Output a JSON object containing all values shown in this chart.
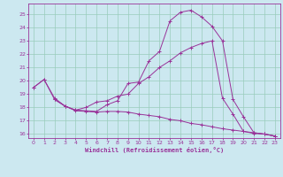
{
  "background_color": "#cce8f0",
  "grid_color": "#99ccbb",
  "line_color": "#993399",
  "xlim": [
    -0.5,
    23.5
  ],
  "ylim": [
    15.7,
    25.8
  ],
  "yticks": [
    16,
    17,
    18,
    19,
    20,
    21,
    22,
    23,
    24,
    25
  ],
  "xticks": [
    0,
    1,
    2,
    3,
    4,
    5,
    6,
    7,
    8,
    9,
    10,
    11,
    12,
    13,
    14,
    15,
    16,
    17,
    18,
    19,
    20,
    21,
    22,
    23
  ],
  "xlabel": "Windchill (Refroidissement éolien,°C)",
  "line1_x": [
    0,
    1,
    2,
    3,
    4,
    5,
    6,
    7,
    8,
    9,
    10,
    11,
    12,
    13,
    14,
    15,
    16,
    17,
    18,
    19,
    20,
    21,
    22,
    23
  ],
  "line1_y": [
    19.5,
    20.1,
    18.6,
    18.1,
    17.8,
    17.75,
    17.7,
    18.2,
    18.5,
    19.8,
    19.9,
    21.5,
    22.2,
    24.5,
    25.15,
    25.3,
    24.8,
    24.1,
    23.0,
    18.6,
    17.3,
    16.1,
    16.0,
    15.85
  ],
  "line2_x": [
    0,
    1,
    2,
    3,
    4,
    5,
    6,
    7,
    8,
    9,
    10,
    11,
    12,
    13,
    14,
    15,
    16,
    17,
    18,
    19,
    20,
    21,
    22,
    23
  ],
  "line2_y": [
    19.5,
    20.1,
    18.7,
    18.1,
    17.8,
    18.0,
    18.4,
    18.5,
    18.85,
    19.0,
    19.8,
    20.3,
    21.0,
    21.5,
    22.1,
    22.5,
    22.8,
    23.0,
    18.7,
    17.5,
    16.2,
    16.05,
    16.0,
    15.85
  ],
  "line3_x": [
    2,
    3,
    4,
    5,
    6,
    7,
    8,
    9,
    10,
    11,
    12,
    13,
    14,
    15,
    16,
    17,
    18,
    19,
    20,
    21,
    22,
    23
  ],
  "line3_y": [
    18.6,
    18.1,
    17.75,
    17.7,
    17.65,
    17.7,
    17.7,
    17.65,
    17.5,
    17.4,
    17.3,
    17.1,
    17.0,
    16.8,
    16.7,
    16.55,
    16.4,
    16.3,
    16.2,
    16.1,
    16.0,
    15.85
  ]
}
